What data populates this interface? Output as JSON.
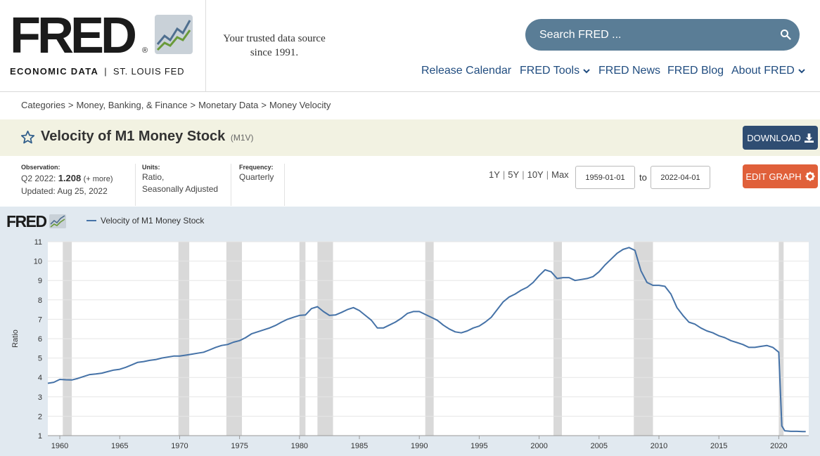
{
  "header": {
    "logo_word": "FRED",
    "logo_reg": "®",
    "logo_sub_left": "ECONOMIC DATA",
    "logo_sub_sep": "|",
    "logo_sub_right": "ST. LOUIS FED",
    "tagline_1": "Your trusted data source",
    "tagline_2": "since 1991.",
    "search_placeholder": "Search FRED ...",
    "nav": [
      {
        "label": "Release Calendar",
        "dropdown": false
      },
      {
        "label": "FRED Tools",
        "dropdown": true
      },
      {
        "label": "FRED News",
        "dropdown": false
      },
      {
        "label": "FRED Blog",
        "dropdown": false
      },
      {
        "label": "About FRED",
        "dropdown": true
      }
    ]
  },
  "breadcrumb": [
    "Categories",
    "Money, Banking, & Finance",
    "Monetary Data",
    "Money Velocity"
  ],
  "series": {
    "title": "Velocity of M1 Money Stock",
    "code": "(M1V)",
    "download_label": "DOWNLOAD",
    "edit_label": "EDIT GRAPH"
  },
  "meta": {
    "observation_label": "Observation:",
    "observation_period": "Q2 2022:",
    "observation_value": "1.208",
    "observation_more": "(+ more)",
    "updated": "Updated: Aug 25, 2022",
    "units_label": "Units:",
    "units_1": "Ratio,",
    "units_2": "Seasonally Adjusted",
    "frequency_label": "Frequency:",
    "frequency": "Quarterly"
  },
  "range": {
    "buttons": [
      "1Y",
      "5Y",
      "10Y",
      "Max"
    ],
    "separator": "|",
    "start": "1959-01-01",
    "to_label": "to",
    "end": "2022-04-01"
  },
  "colors": {
    "line": "#4572a7",
    "recession": "#d9d9d9",
    "panel_bg": "#e1e9f0",
    "download_btn": "#2f4d72",
    "edit_btn": "#e0603a"
  },
  "chart_data": {
    "type": "line",
    "title": "",
    "xlabel": "",
    "ylabel": "Ratio",
    "xlim": [
      1959.0,
      2022.5
    ],
    "ylim": [
      1,
      11
    ],
    "yticks": [
      1,
      2,
      3,
      4,
      5,
      6,
      7,
      8,
      9,
      10,
      11
    ],
    "xticks": [
      1960,
      1965,
      1970,
      1975,
      1980,
      1985,
      1990,
      1995,
      2000,
      2005,
      2010,
      2015,
      2020
    ],
    "grid": true,
    "legend_position": "top-left",
    "series": [
      {
        "name": "Velocity of M1 Money Stock",
        "x": [
          1959.0,
          1959.5,
          1960.0,
          1960.5,
          1961.0,
          1961.5,
          1962.0,
          1962.5,
          1963.0,
          1963.5,
          1964.0,
          1964.5,
          1965.0,
          1965.5,
          1966.0,
          1966.5,
          1967.0,
          1967.5,
          1968.0,
          1968.5,
          1969.0,
          1969.5,
          1970.0,
          1970.5,
          1971.0,
          1971.5,
          1972.0,
          1972.5,
          1973.0,
          1973.5,
          1974.0,
          1974.5,
          1975.0,
          1975.5,
          1976.0,
          1976.5,
          1977.0,
          1977.5,
          1978.0,
          1978.5,
          1979.0,
          1979.5,
          1980.0,
          1980.5,
          1981.0,
          1981.5,
          1982.0,
          1982.5,
          1983.0,
          1983.5,
          1984.0,
          1984.5,
          1985.0,
          1985.5,
          1986.0,
          1986.5,
          1987.0,
          1987.5,
          1988.0,
          1988.5,
          1989.0,
          1989.5,
          1990.0,
          1990.5,
          1991.0,
          1991.5,
          1992.0,
          1992.5,
          1993.0,
          1993.5,
          1994.0,
          1994.5,
          1995.0,
          1995.5,
          1996.0,
          1996.5,
          1997.0,
          1997.5,
          1998.0,
          1998.5,
          1999.0,
          1999.5,
          2000.0,
          2000.5,
          2001.0,
          2001.5,
          2002.0,
          2002.5,
          2003.0,
          2003.5,
          2004.0,
          2004.5,
          2005.0,
          2005.5,
          2006.0,
          2006.5,
          2007.0,
          2007.5,
          2008.0,
          2008.5,
          2009.0,
          2009.5,
          2010.0,
          2010.5,
          2011.0,
          2011.5,
          2012.0,
          2012.5,
          2013.0,
          2013.5,
          2014.0,
          2014.5,
          2015.0,
          2015.5,
          2016.0,
          2016.5,
          2017.0,
          2017.5,
          2018.0,
          2018.5,
          2019.0,
          2019.5,
          2020.0,
          2020.25,
          2020.5,
          2021.0,
          2021.5,
          2022.0,
          2022.25
        ],
        "values": [
          3.7,
          3.75,
          3.9,
          3.88,
          3.87,
          3.95,
          4.05,
          4.15,
          4.18,
          4.22,
          4.3,
          4.38,
          4.42,
          4.52,
          4.65,
          4.78,
          4.82,
          4.88,
          4.92,
          5.0,
          5.05,
          5.1,
          5.1,
          5.15,
          5.2,
          5.25,
          5.3,
          5.42,
          5.55,
          5.65,
          5.7,
          5.82,
          5.9,
          6.05,
          6.25,
          6.35,
          6.45,
          6.55,
          6.68,
          6.85,
          7.0,
          7.1,
          7.2,
          7.22,
          7.55,
          7.65,
          7.4,
          7.2,
          7.22,
          7.35,
          7.5,
          7.6,
          7.45,
          7.2,
          6.95,
          6.55,
          6.55,
          6.7,
          6.85,
          7.05,
          7.3,
          7.4,
          7.4,
          7.25,
          7.1,
          6.95,
          6.7,
          6.5,
          6.35,
          6.3,
          6.4,
          6.55,
          6.65,
          6.85,
          7.1,
          7.5,
          7.9,
          8.15,
          8.3,
          8.5,
          8.65,
          8.9,
          9.25,
          9.55,
          9.45,
          9.1,
          9.15,
          9.15,
          9.0,
          9.05,
          9.1,
          9.2,
          9.45,
          9.8,
          10.1,
          10.4,
          10.6,
          10.7,
          10.55,
          9.5,
          8.9,
          8.75,
          8.75,
          8.7,
          8.3,
          7.6,
          7.2,
          6.85,
          6.75,
          6.55,
          6.4,
          6.3,
          6.15,
          6.05,
          5.9,
          5.8,
          5.7,
          5.55,
          5.55,
          5.6,
          5.65,
          5.55,
          5.3,
          1.5,
          1.25,
          1.22,
          1.22,
          1.21,
          1.208
        ]
      }
    ],
    "recessions": [
      [
        1960.25,
        1961.0
      ],
      [
        1969.9,
        1970.8
      ],
      [
        1973.9,
        1975.2
      ],
      [
        1980.0,
        1980.5
      ],
      [
        1981.5,
        1982.8
      ],
      [
        1990.5,
        1991.2
      ],
      [
        2001.2,
        2001.9
      ],
      [
        2007.9,
        2009.5
      ],
      [
        2020.0,
        2020.4
      ]
    ]
  }
}
